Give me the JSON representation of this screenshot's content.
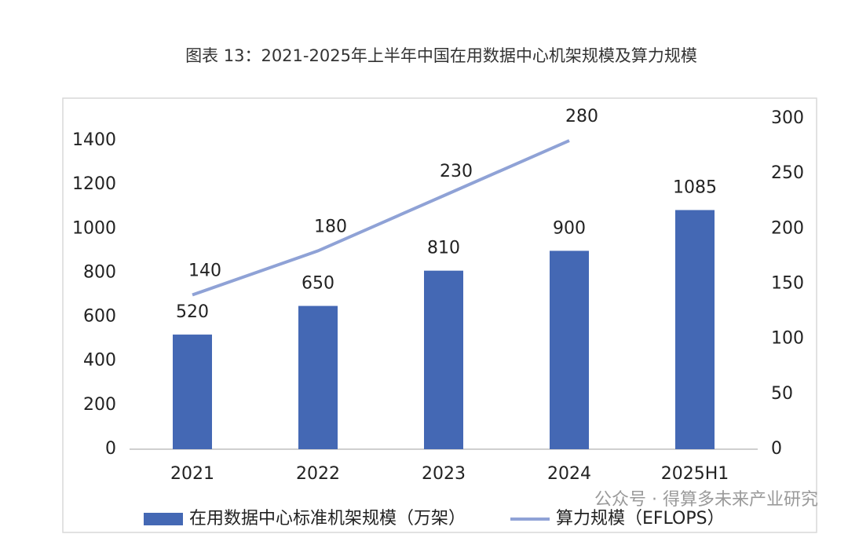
{
  "chart_data": {
    "type": "bar-line",
    "title": "图表 13：2021-2025年上半年中国在用数据中心机架规模及算力规模",
    "categories": [
      "2021",
      "2022",
      "2023",
      "2024",
      "2025H1"
    ],
    "series": [
      {
        "name": "在用数据中心标准机架规模（万架）",
        "type": "bar",
        "color": "#4468b4",
        "values": [
          520,
          650,
          810,
          900,
          1085
        ]
      },
      {
        "name": "算力规模（EFLOPS）",
        "type": "line",
        "axis": "y2",
        "color": "#8fa2d6",
        "values": [
          140,
          180,
          230,
          280,
          null
        ]
      }
    ],
    "ylim": [
      0,
      1500
    ],
    "yticks": [
      0,
      200,
      400,
      600,
      800,
      1000,
      1200,
      1400
    ],
    "y2lim": [
      0,
      300
    ],
    "y2ticks": [
      0,
      50,
      100,
      150,
      200,
      250,
      300
    ],
    "grid": false,
    "legend": "bottom",
    "watermark": "公众号 · 得算多未来产业研究"
  }
}
